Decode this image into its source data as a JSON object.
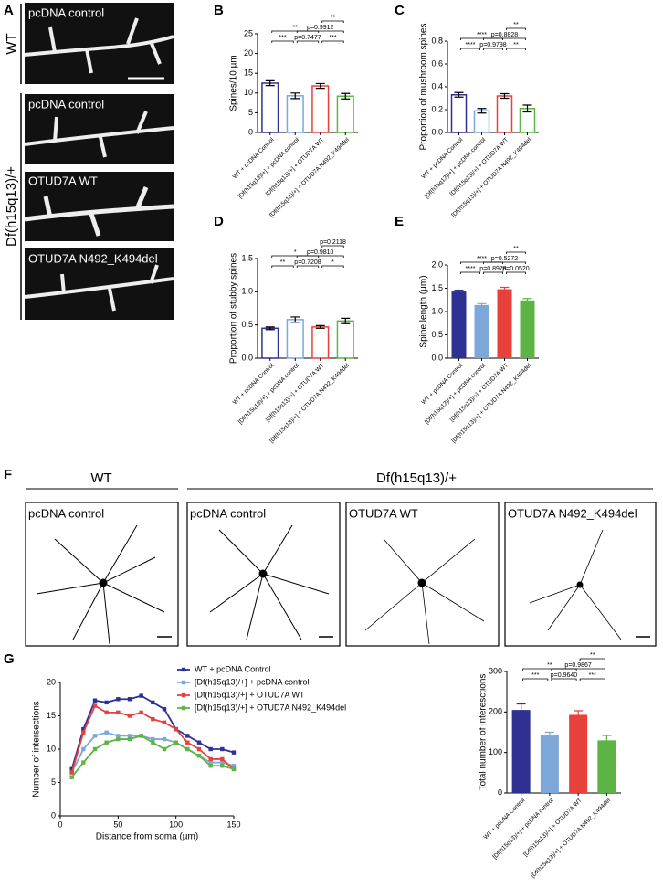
{
  "panel_labels": [
    "A",
    "B",
    "C",
    "D",
    "E",
    "F",
    "G"
  ],
  "panel_a": {
    "groups": [
      "WT",
      "Df(h15q13)/+"
    ],
    "images": [
      "pcDNA control",
      "pcDNA control",
      "OTUD7A WT",
      "OTUD7A N492_K494del"
    ]
  },
  "panel_f": {
    "groups": [
      "WT",
      "Df(h15q13)/+"
    ],
    "images": [
      "pcDNA control",
      "pcDNA control",
      "OTUD7A WT",
      "OTUD7A N492_K494del"
    ]
  },
  "chart_data": [
    {
      "type": "bar",
      "ylabel": "Spines/10 µm",
      "categories": [
        "WT + pcDNA Control",
        "[Df(h15q13)/+] + pcDNA control",
        "[Df(h15q13)/+] + OTUD7A WT",
        "[Df(h15q13)/+] + OTUD7A N492_K494del"
      ],
      "values": [
        12.5,
        9.3,
        11.8,
        9.2
      ],
      "errors": [
        0.6,
        0.7,
        0.6,
        0.7
      ],
      "colors": [
        "#2e3192",
        "#7da7d9",
        "#e8413c",
        "#5bb444"
      ],
      "filled": false,
      "ylim": [
        0,
        25
      ],
      "yticks": [
        0,
        5,
        10,
        15,
        20,
        25
      ],
      "significance": [
        [
          {
            "pair": [
              0,
              1
            ],
            "label": "***"
          },
          {
            "pair": [
              1,
              2
            ],
            "label": "p=0.7477"
          },
          {
            "pair": [
              2,
              3
            ],
            "label": "***"
          }
        ],
        [
          {
            "pair": [
              0,
              2
            ],
            "label": "**"
          },
          {
            "pair": [
              1,
              3
            ],
            "label": "p=0.9912"
          }
        ],
        [
          {
            "pair": [
              2,
              3
            ],
            "label": "**"
          }
        ]
      ]
    },
    {
      "type": "bar",
      "ylabel": "Proportion of mushroom spines",
      "categories": [
        "WT + pcDNA Control",
        "[Df(h15q13)/+] + pcDNA control",
        "[Df(h15q13)/+] + OTUD7A WT",
        "[Df(h15q13)/+] + OTUD7A N492_K494del"
      ],
      "values": [
        0.33,
        0.19,
        0.32,
        0.21
      ],
      "errors": [
        0.02,
        0.02,
        0.02,
        0.03
      ],
      "colors": [
        "#2e3192",
        "#7da7d9",
        "#e8413c",
        "#5bb444"
      ],
      "filled": false,
      "ylim": [
        0,
        0.8
      ],
      "yticks": [
        {
          "value": 0,
          "label": "0.0"
        },
        0.2,
        0.4,
        0.6,
        0.8
      ],
      "significance": [
        [
          {
            "pair": [
              0,
              1
            ],
            "label": "****"
          },
          {
            "pair": [
              1,
              2
            ],
            "label": "p=0.9798"
          },
          {
            "pair": [
              2,
              3
            ],
            "label": "**"
          }
        ],
        [
          {
            "pair": [
              0,
              2
            ],
            "label": "****"
          },
          {
            "pair": [
              1,
              3
            ],
            "label": "p=0.8828"
          }
        ],
        [
          {
            "pair": [
              2,
              3
            ],
            "label": "**"
          }
        ]
      ]
    },
    {
      "type": "bar",
      "ylabel": "Proportion of stubby spines",
      "categories": [
        "WT + pcDNA Control",
        "[Df(h15q13)/+] + pcDNA control",
        "[Df(h15q13)/+] + OTUD7A WT",
        "[Df(h15q13)/+] + OTUD7A N492_K494del"
      ],
      "values": [
        0.45,
        0.58,
        0.47,
        0.56
      ],
      "errors": [
        0.02,
        0.04,
        0.02,
        0.04
      ],
      "colors": [
        "#2e3192",
        "#7da7d9",
        "#e8413c",
        "#5bb444"
      ],
      "filled": false,
      "ylim": [
        0,
        1.5
      ],
      "yticks": [
        {
          "value": 0,
          "label": "0.0"
        },
        0.5,
        {
          "value": 1,
          "label": "1.0"
        },
        1.5
      ],
      "significance": [
        [
          {
            "pair": [
              0,
              1
            ],
            "label": "**"
          },
          {
            "pair": [
              1,
              2
            ],
            "label": "p=0.7208"
          },
          {
            "pair": [
              2,
              3
            ],
            "label": "*"
          }
        ],
        [
          {
            "pair": [
              0,
              2
            ],
            "label": "*"
          },
          {
            "pair": [
              1,
              3
            ],
            "label": "p=0.9810"
          }
        ],
        [
          {
            "pair": [
              2,
              3
            ],
            "label": "p=0.2118"
          }
        ]
      ]
    },
    {
      "type": "bar",
      "ylabel": "Spine length (µm)",
      "categories": [
        "WT + pcDNA Control",
        "[Df(h15q13)/+] + pcDNA control",
        "[Df(h15q13)/+] + OTUD7A WT",
        "[Df(h15q13)/+] + OTUD7A N492_K494del"
      ],
      "values": [
        1.43,
        1.14,
        1.48,
        1.24
      ],
      "errors": [
        0.03,
        0.03,
        0.04,
        0.04
      ],
      "colors": [
        "#2e3192",
        "#7da7d9",
        "#e8413c",
        "#5bb444"
      ],
      "filled": true,
      "ylim": [
        0,
        2
      ],
      "yticks": [
        {
          "value": 0,
          "label": "0.0"
        },
        0.5,
        {
          "value": 1,
          "label": "1.0"
        },
        1.5,
        {
          "value": 2,
          "label": "2.0"
        }
      ],
      "significance": [
        [
          {
            "pair": [
              0,
              1
            ],
            "label": "****"
          },
          {
            "pair": [
              1,
              2
            ],
            "label": "p=0.8978"
          },
          {
            "pair": [
              2,
              3
            ],
            "label": "p=0.0520"
          }
        ],
        [
          {
            "pair": [
              0,
              2
            ],
            "label": "****"
          },
          {
            "pair": [
              1,
              3
            ],
            "label": "p=0.5272"
          }
        ],
        [
          {
            "pair": [
              2,
              3
            ],
            "label": "**"
          }
        ]
      ]
    },
    {
      "type": "line",
      "xlabel": "Distance from soma (µm)",
      "ylabel": "Number of intersections",
      "x": [
        10,
        20,
        30,
        40,
        50,
        60,
        70,
        80,
        90,
        100,
        110,
        120,
        130,
        140,
        150
      ],
      "xlim": [
        0,
        150
      ],
      "xticks": [
        0,
        50,
        100,
        150
      ],
      "ylim": [
        0,
        20
      ],
      "yticks": [
        0,
        5,
        10,
        15,
        20
      ],
      "legend": "upper right",
      "series": [
        {
          "name": "WT + pcDNA Control",
          "color": "#2e3192",
          "values": [
            7,
            13,
            17.3,
            17,
            17.5,
            17.5,
            18,
            17,
            16,
            13,
            12,
            11,
            10,
            10,
            9.5
          ]
        },
        {
          "name": "[Df(h15q13)/+] + pcDNA control",
          "color": "#7da7d9",
          "values": [
            6.5,
            10,
            12,
            12.5,
            12,
            12,
            12,
            11.5,
            11.5,
            11,
            10,
            9,
            8,
            8,
            7.5
          ]
        },
        {
          "name": "[Df(h15q13)/+] + OTUD7A WT",
          "color": "#e8413c",
          "values": [
            6.5,
            12.5,
            16.5,
            15.5,
            15.5,
            15,
            15.5,
            14.5,
            14,
            13,
            11,
            10,
            8.5,
            8.5,
            7
          ]
        },
        {
          "name": "[Df(h15q13)/+] + OTUD7A N492_K494del",
          "color": "#5bb444",
          "values": [
            5.8,
            8,
            10,
            11,
            11.5,
            11.5,
            12,
            11,
            10,
            11,
            10,
            9,
            7.5,
            7.5,
            7
          ]
        }
      ]
    },
    {
      "type": "bar",
      "ylabel": "Total number of interesctions",
      "categories": [
        "WT + pcDNA Control",
        "[Df(h15q13)/+] + pcDNA control",
        "[Df(h15q13)/+] + OTUD7A WT",
        "[Df(h15q13)/+] + OTUD7A N492_K494del"
      ],
      "values": [
        205,
        142,
        193,
        130
      ],
      "errors": [
        15,
        8,
        10,
        12
      ],
      "colors": [
        "#2e3192",
        "#7da7d9",
        "#e8413c",
        "#5bb444"
      ],
      "filled": true,
      "ylim": [
        0,
        300
      ],
      "yticks": [
        0,
        100,
        200,
        300
      ],
      "significance": [
        [
          {
            "pair": [
              0,
              1
            ],
            "label": "***"
          },
          {
            "pair": [
              1,
              2
            ],
            "label": "p=0.9640"
          },
          {
            "pair": [
              2,
              3
            ],
            "label": "***"
          }
        ],
        [
          {
            "pair": [
              0,
              2
            ],
            "label": "**"
          },
          {
            "pair": [
              1,
              3
            ],
            "label": "p=0.9867"
          }
        ],
        [
          {
            "pair": [
              2,
              3
            ],
            "label": "**"
          }
        ]
      ]
    }
  ]
}
